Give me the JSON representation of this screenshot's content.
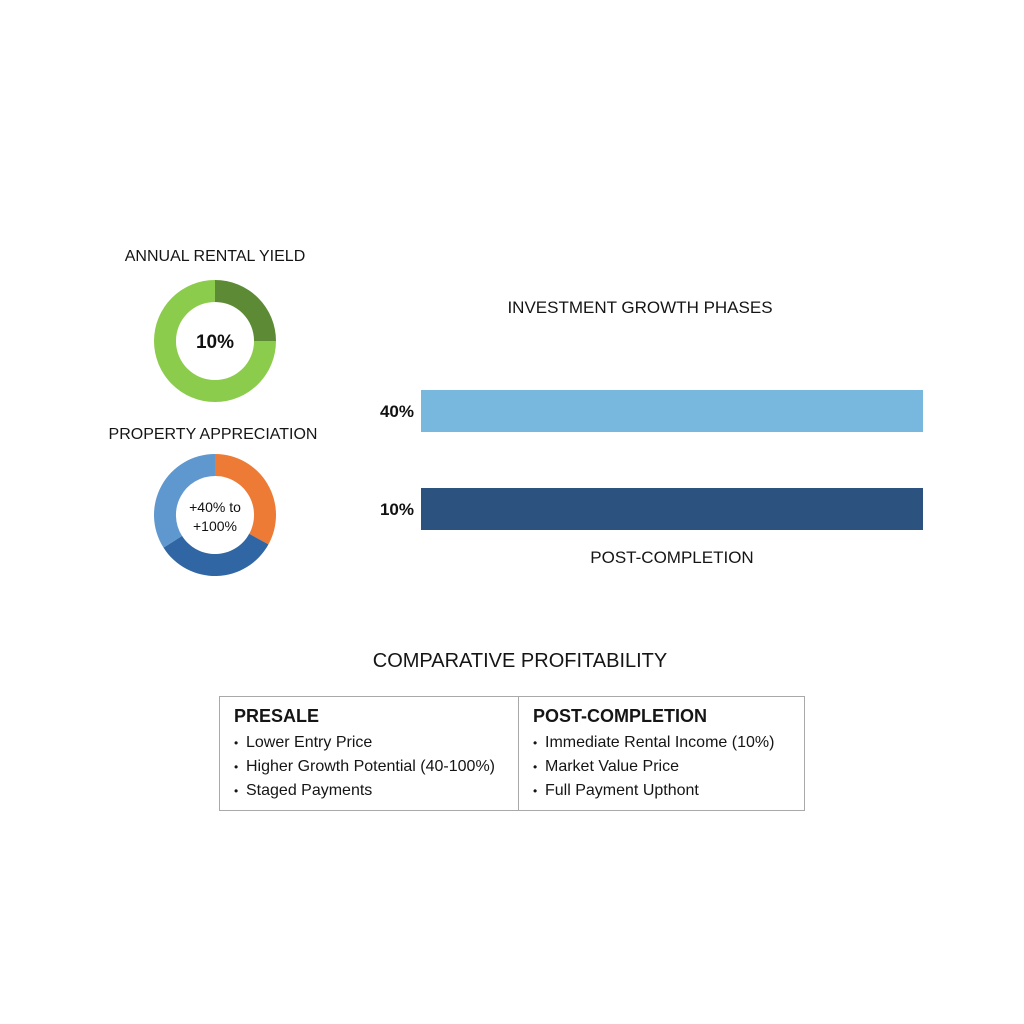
{
  "chart_data": [
    {
      "type": "pie",
      "title": "ANNUAL RENTAL YIELD",
      "center_label": "10%",
      "inner_radius_ratio": 0.64,
      "colors": [
        "#5d8b35",
        "#8bcc4c"
      ],
      "values": [
        25,
        75
      ]
    },
    {
      "type": "pie",
      "title": "PROPERTY APPRECIATION",
      "center_label_lines": [
        "+40% to",
        "+100%"
      ],
      "inner_radius_ratio": 0.64,
      "colors": [
        "#ed7b35",
        "#2f66a3",
        "#5f97cf"
      ],
      "values": [
        33,
        33,
        34
      ]
    },
    {
      "type": "bar",
      "orientation": "horizontal",
      "title": "INVESTMENT GROWTH PHASES",
      "xlabel": "POST-COMPLETION",
      "ylabel": "",
      "categories": [
        "40%",
        "10%"
      ],
      "values": [
        1,
        1
      ],
      "xlim": [
        0,
        1
      ],
      "colors": [
        "#79b8de",
        "#2c5380"
      ],
      "grid": false,
      "legend": "none"
    }
  ],
  "table": {
    "title": "COMPARATIVE PROFITABILITY",
    "columns": [
      {
        "heading": "PRESALE",
        "items": [
          "Lower Entry Price",
          "Higher Growth Potential (40-100%)",
          "Staged Payments"
        ]
      },
      {
        "heading": "POST-COMPLETION",
        "items": [
          "Immediate Rental Income (10%)",
          "Market Value Price",
          "Full Payment Upthont"
        ]
      }
    ]
  }
}
